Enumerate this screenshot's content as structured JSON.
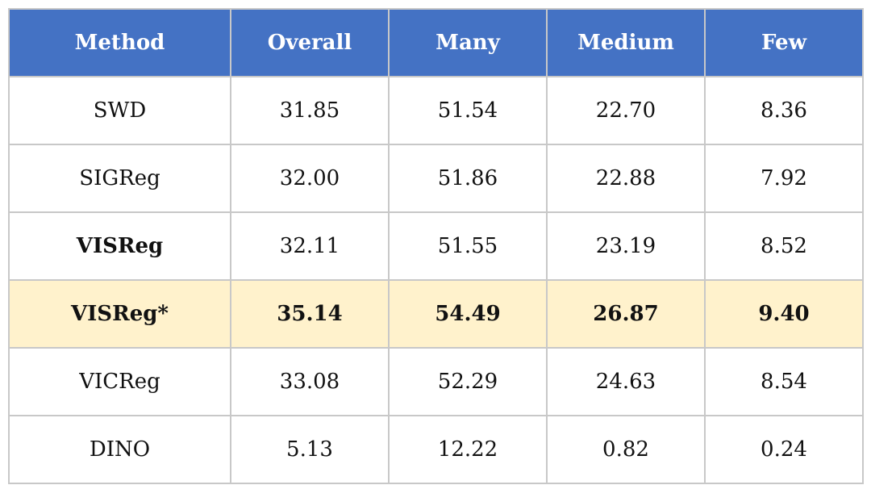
{
  "table": {
    "header": [
      "Method",
      "Overall",
      "Many",
      "Medium",
      "Few"
    ],
    "rows": [
      [
        "SWD",
        "31.85",
        "51.54",
        "22.70",
        "8.36"
      ],
      [
        "SIGReg",
        "32.00",
        "51.86",
        "22.88",
        "7.92"
      ],
      [
        "VISReg",
        "32.11",
        "51.55",
        "23.19",
        "8.52"
      ],
      [
        "VISReg*",
        "35.14",
        "54.49",
        "26.87",
        "9.40"
      ],
      [
        "VICReg",
        "33.08",
        "52.29",
        "24.63",
        "8.54"
      ],
      [
        "DINO",
        "5.13",
        "12.22",
        "0.82",
        "0.24"
      ]
    ]
  }
}
